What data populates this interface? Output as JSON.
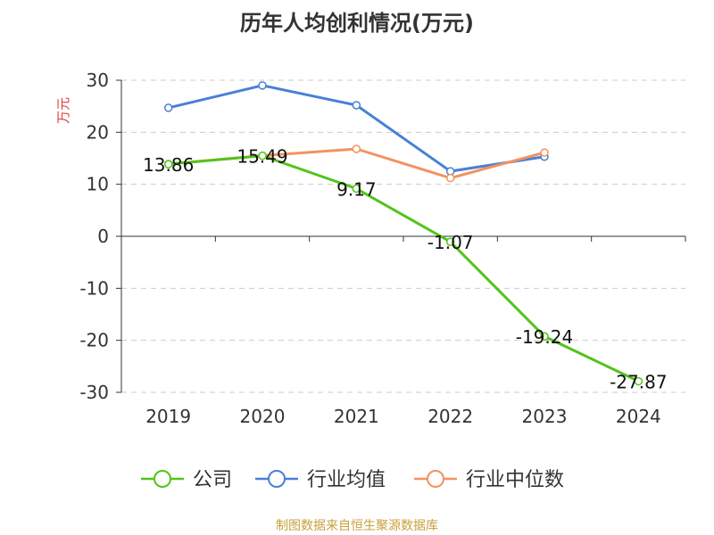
{
  "chart_data": {
    "type": "line",
    "title": "历年人均创利情况(万元)",
    "ylabel": "万元",
    "xlabel": "",
    "categories": [
      "2019",
      "2020",
      "2021",
      "2022",
      "2023",
      "2024"
    ],
    "ylim": [
      -30,
      30
    ],
    "yticks": [
      30,
      20,
      10,
      0,
      -10,
      -20,
      -30
    ],
    "grid": true,
    "legend_position": "bottom",
    "series": [
      {
        "name": "公司",
        "color": "#52c41a",
        "values": [
          13.86,
          15.49,
          9.17,
          -1.07,
          -19.24,
          -27.87
        ],
        "labels": [
          "13.86",
          "15.49",
          "9.17",
          "-1.07",
          "-19.24",
          "-27.87"
        ]
      },
      {
        "name": "行业均值",
        "color": "#4a7fd8",
        "values": [
          24.7,
          29.0,
          25.2,
          12.5,
          15.3,
          null
        ]
      },
      {
        "name": "行业中位数",
        "color": "#f39261",
        "values": [
          13.9,
          15.5,
          16.8,
          11.2,
          16.1,
          null
        ]
      }
    ]
  },
  "footer": {
    "source": "制图数据来自恒生聚源数据库"
  }
}
